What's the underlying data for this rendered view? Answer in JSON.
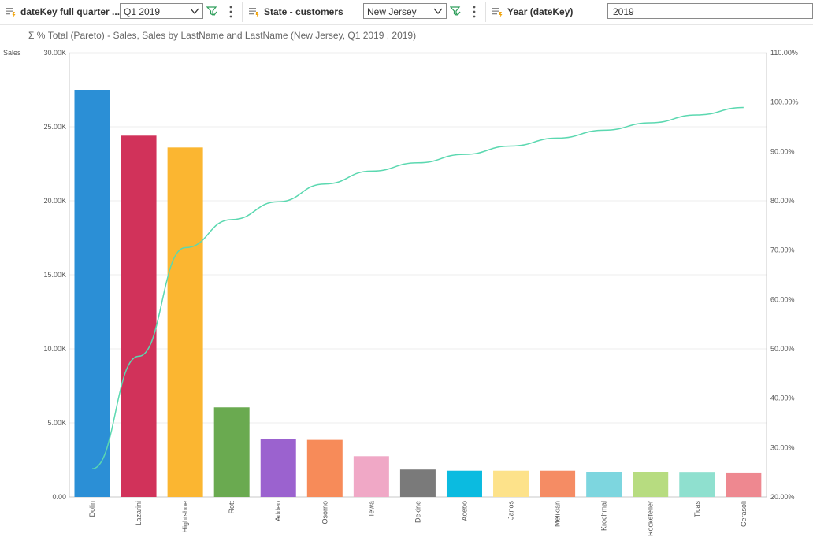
{
  "filters": {
    "date": {
      "label": "dateKey full quarter ...",
      "value": "Q1 2019"
    },
    "state": {
      "label": "State - customers",
      "value": "New Jersey"
    },
    "year": {
      "label": "Year (dateKey)",
      "value": "2019"
    }
  },
  "chart_subtitle": "Σ % Total (Pareto) - Sales, Sales by LastName and LastName (New Jersey, Q1 2019 , 2019)",
  "chart_data": {
    "type": "bar",
    "ylabel": "Sales",
    "ylim": [
      0,
      30000
    ],
    "y2lim": [
      0.2,
      1.1
    ],
    "y_ticks": [
      "0.00",
      "5.00K",
      "10.00K",
      "15.00K",
      "20.00K",
      "25.00K",
      "30.00K"
    ],
    "y2_ticks": [
      "20.00%",
      "30.00%",
      "40.00%",
      "50.00%",
      "60.00%",
      "70.00%",
      "80.00%",
      "90.00%",
      "100.00%",
      "110.00%"
    ],
    "grid": true,
    "categories": [
      "Dolin",
      "Lazarini",
      "Hightshoe",
      "Rott",
      "Addeo",
      "Osorno",
      "Tewa",
      "Dekine",
      "Acebo",
      "Janos",
      "Melikian",
      "Krochmal",
      "Rockefeller",
      "Ticas",
      "Cerasoli"
    ],
    "series": [
      {
        "type": "bar",
        "values": [
          27500,
          24400,
          23600,
          6050,
          3900,
          3850,
          2750,
          1850,
          1770,
          1770,
          1770,
          1680,
          1680,
          1640,
          1600
        ]
      },
      {
        "type": "line",
        "values": [
          0.257,
          0.485,
          0.705,
          0.762,
          0.798,
          0.834,
          0.86,
          0.877,
          0.894,
          0.911,
          0.927,
          0.943,
          0.958,
          0.974,
          0.989
        ],
        "color": "#5bd8b0"
      }
    ],
    "bar_colors": [
      "#2b8fd6",
      "#d1325a",
      "#fbb631",
      "#6aaa50",
      "#9b62cf",
      "#f78b59",
      "#f0a8c6",
      "#7a7a7a",
      "#0bbbe0",
      "#fde28a",
      "#f58c64",
      "#7dd6df",
      "#b7dc80",
      "#8fe0cf",
      "#ee8890"
    ]
  }
}
